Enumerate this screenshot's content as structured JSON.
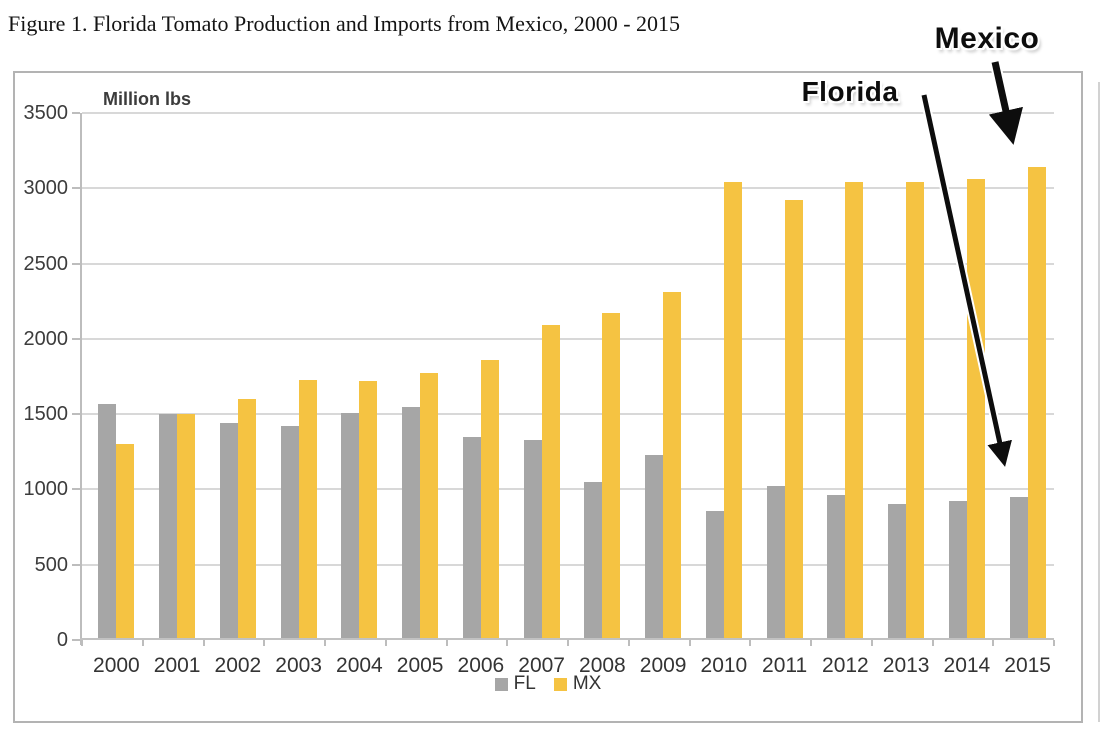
{
  "title": "Figure 1. Florida Tomato Production and Imports from Mexico, 2000 - 2015",
  "chart_data": {
    "type": "bar",
    "title": "Figure 1. Florida Tomato Production and Imports from Mexico, 2000 - 2015",
    "ylabel": "Million lbs",
    "xlabel": "",
    "categories": [
      "2000",
      "2001",
      "2002",
      "2003",
      "2004",
      "2005",
      "2006",
      "2007",
      "2008",
      "2009",
      "2010",
      "2011",
      "2012",
      "2013",
      "2014",
      "2015"
    ],
    "series": [
      {
        "name": "FL",
        "color": "#A6A6A6",
        "values": [
          1570,
          1500,
          1440,
          1420,
          1510,
          1550,
          1350,
          1330,
          1050,
          1230,
          855,
          1020,
          960,
          900,
          920,
          950
        ]
      },
      {
        "name": "MX",
        "color": "#F5C342",
        "values": [
          1300,
          1500,
          1600,
          1730,
          1720,
          1770,
          1860,
          2090,
          2170,
          2310,
          3040,
          2920,
          3040,
          3040,
          3060,
          3140
        ]
      }
    ],
    "ylim": [
      0,
      3500
    ],
    "yticks": [
      0,
      500,
      1000,
      1500,
      2000,
      2500,
      3000,
      3500
    ],
    "grid": true,
    "legend_position": "bottom-center",
    "annotations": [
      {
        "label": "Florida",
        "points_to": "2015 FL bar"
      },
      {
        "label": "Mexico",
        "points_to": "2015 MX bar"
      }
    ]
  }
}
